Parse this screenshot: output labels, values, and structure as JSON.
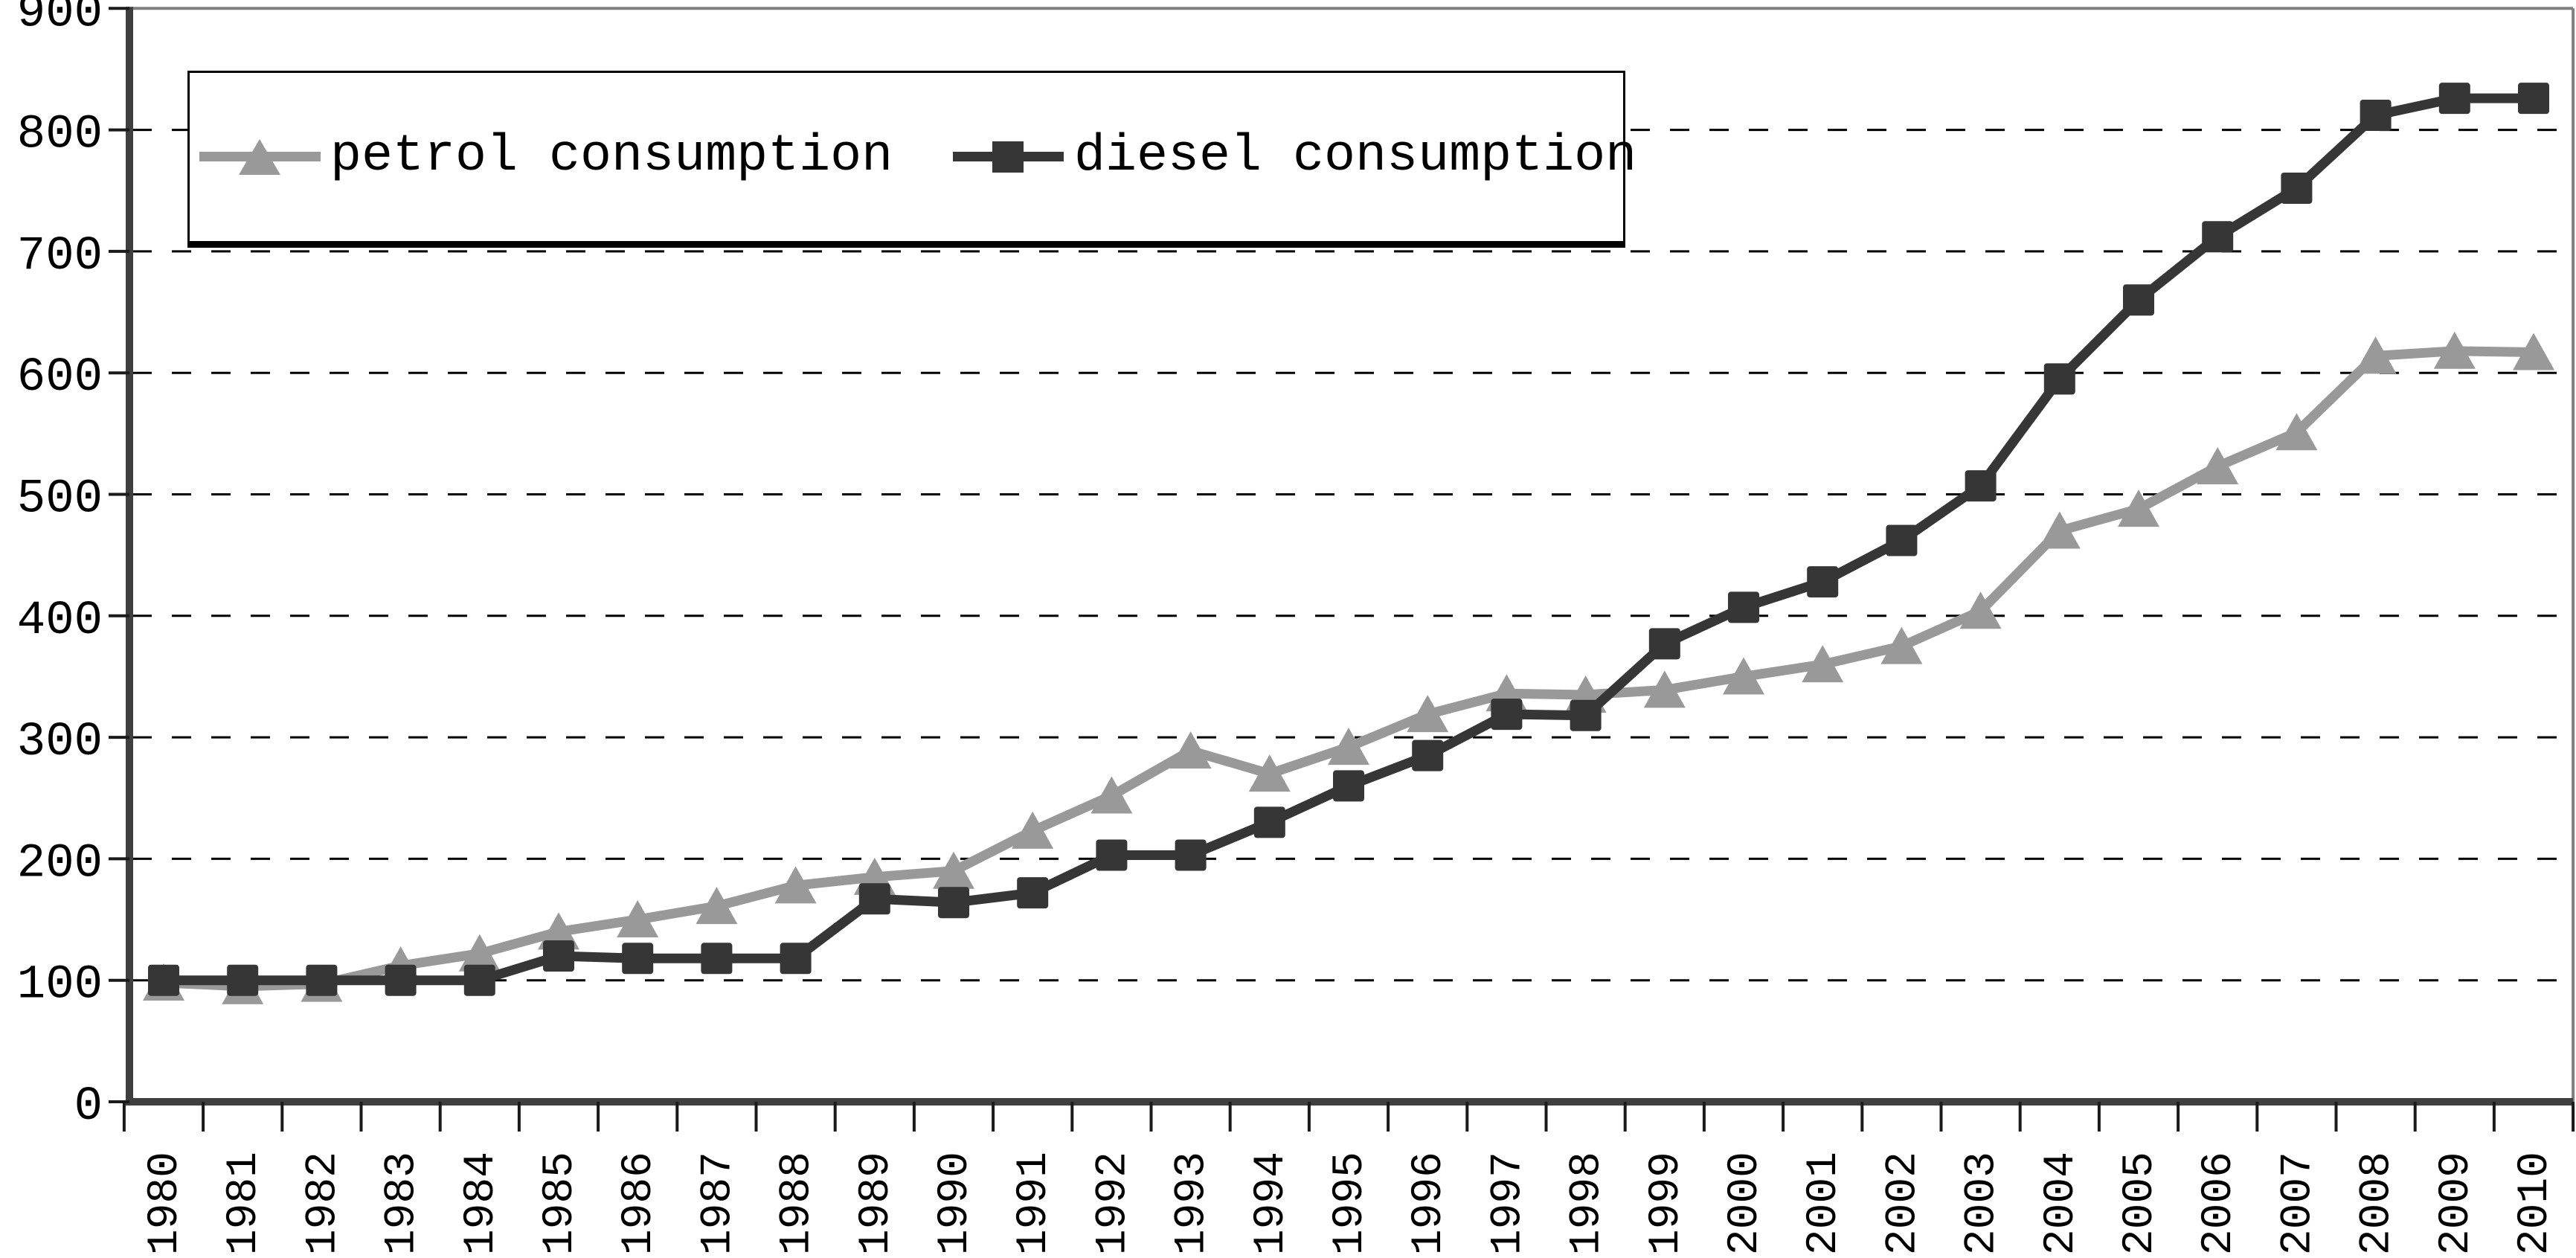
{
  "legend": {
    "petrol_label": "petrol consumption",
    "diesel_label": "diesel consumption"
  },
  "colors": {
    "petrol": "#999999",
    "diesel": "#363636",
    "gridline": "#000000",
    "axis": "#3f3f3f",
    "frame": "#808080",
    "background": "#ffffff",
    "text": "#000000"
  },
  "chart_data": {
    "type": "line",
    "title": "",
    "xlabel": "",
    "ylabel": "",
    "x": [
      1980,
      1981,
      1982,
      1983,
      1984,
      1985,
      1986,
      1987,
      1988,
      1989,
      1990,
      1991,
      1992,
      1993,
      1994,
      1995,
      1996,
      1997,
      1998,
      1999,
      2000,
      2001,
      2002,
      2003,
      2004,
      2005,
      2006,
      2007,
      2008,
      2009,
      2010
    ],
    "series": [
      {
        "name": "petrol consumption",
        "marker": "triangle",
        "color": "#999999",
        "values": [
          98,
          95,
          97,
          112,
          122,
          140,
          150,
          161,
          178,
          185,
          190,
          223,
          252,
          289,
          270,
          292,
          319,
          336,
          335,
          339,
          350,
          360,
          375,
          404,
          470,
          488,
          523,
          551,
          614,
          618,
          617
        ]
      },
      {
        "name": "diesel consumption",
        "marker": "square",
        "color": "#363636",
        "values": [
          100,
          100,
          100,
          100,
          100,
          120,
          118,
          118,
          118,
          167,
          164,
          172,
          203,
          203,
          230,
          260,
          285,
          319,
          318,
          377,
          407,
          428,
          462,
          507,
          595,
          660,
          712,
          752,
          812,
          826,
          826
        ]
      }
    ],
    "ylim": [
      0,
      900
    ],
    "yticks": [
      0,
      100,
      200,
      300,
      400,
      500,
      600,
      700,
      800,
      900
    ],
    "grid": "horizontal dashed lines at every 100",
    "legend_position": "top-left inside plot",
    "x_tick_label_rotation": -90
  }
}
